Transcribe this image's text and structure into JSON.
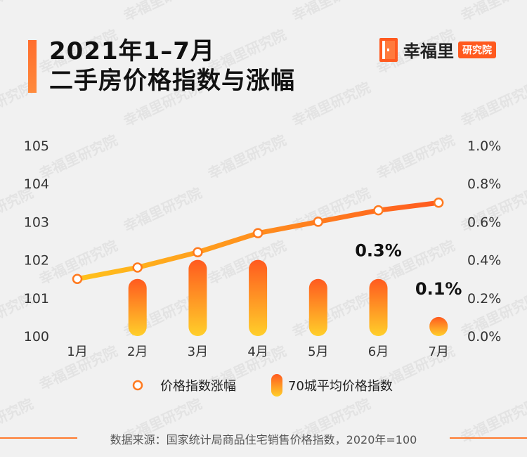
{
  "title_line1": "2021年1–7月",
  "title_line2": "二手房价格指数与涨幅",
  "logo": {
    "name": "幸福里",
    "tag": "研究院"
  },
  "watermark": "幸福里研究院",
  "source": "数据来源：国家统计局商品住宅销售价格指数，2020年=100",
  "colors": {
    "accent": "#ff5a1f",
    "line": "#ff8a1f",
    "bar_top": "#ff5a1f",
    "bar_bottom": "#ffcf2a"
  },
  "chart_data": {
    "type": "bar",
    "categories": [
      "1月",
      "2月",
      "3月",
      "4月",
      "5月",
      "6月",
      "7月"
    ],
    "series": [
      {
        "name": "价格指数涨幅",
        "type": "line",
        "axis": "left",
        "values": [
          101.5,
          101.8,
          102.2,
          102.7,
          103.0,
          103.3,
          103.5
        ]
      },
      {
        "name": "70城平均价格指数",
        "type": "bar",
        "axis": "right",
        "values": [
          null,
          0.3,
          0.4,
          0.4,
          0.3,
          0.3,
          0.1
        ]
      }
    ],
    "data_labels": [
      {
        "category": "6月",
        "text": "0.3%"
      },
      {
        "category": "7月",
        "text": "0.1%"
      }
    ],
    "y_left": {
      "min": 100,
      "max": 105,
      "ticks": [
        "100",
        "101",
        "102",
        "103",
        "104",
        "105"
      ]
    },
    "y_right": {
      "min": 0,
      "max": 1.0,
      "ticks": [
        "0.0%",
        "0.2%",
        "0.4%",
        "0.6%",
        "0.8%",
        "1.0%"
      ]
    },
    "legend_position": "bottom",
    "grid": false
  }
}
